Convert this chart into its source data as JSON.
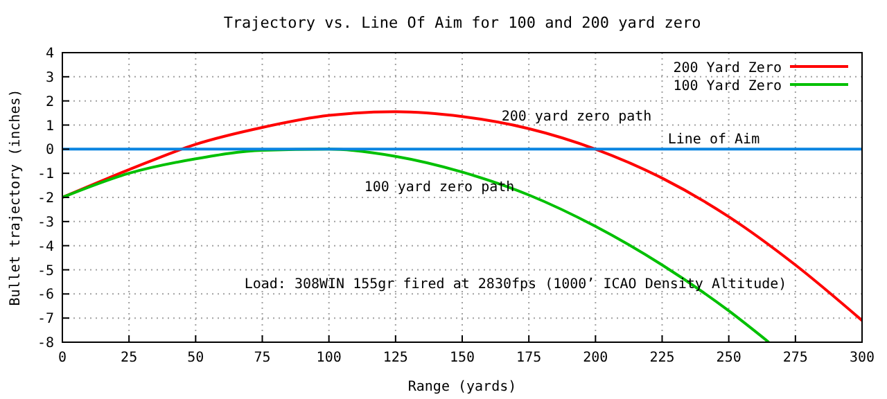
{
  "chart_data": {
    "type": "line",
    "title": "Trajectory vs. Line Of Aim for 100 and 200 yard zero",
    "xlabel": "Range (yards)",
    "ylabel": "Bullet trajectory (inches)",
    "x": [
      0,
      25,
      50,
      75,
      100,
      125,
      150,
      175,
      200,
      225,
      250,
      275,
      300
    ],
    "series": [
      {
        "name": "200 Yard Zero",
        "color": "#ff0000",
        "values": [
          -2,
          -0.85,
          0.2,
          0.9,
          1.4,
          1.55,
          1.35,
          0.85,
          0,
          -1.2,
          -2.8,
          -4.8,
          -7.1
        ]
      },
      {
        "name": "100 Yard Zero",
        "color": "#00c000",
        "x": [
          0,
          25,
          50,
          75,
          100,
          125,
          150,
          175,
          200,
          225,
          250,
          265
        ],
        "values": [
          -2,
          -1,
          -0.4,
          -0.05,
          0,
          -0.3,
          -0.95,
          -1.9,
          -3.2,
          -4.8,
          -6.7,
          -8
        ]
      }
    ],
    "ref_lines": [
      {
        "axis": "y",
        "value": 0,
        "label": "Line of Aim",
        "color": "#0a84e0"
      }
    ],
    "annotations": [
      "200 yard zero path",
      "100 yard zero path",
      "Load: 308WIN 155gr fired at 2830fps (1000’ ICAO Density Altitude)"
    ],
    "xlim": [
      0,
      300
    ],
    "xticks": [
      0,
      25,
      50,
      75,
      100,
      125,
      150,
      175,
      200,
      225,
      250,
      275,
      300
    ],
    "ylim": [
      -8,
      4
    ],
    "yticks": [
      -8,
      -7,
      -6,
      -5,
      -4,
      -3,
      -2,
      -1,
      0,
      1,
      2,
      3,
      4
    ],
    "grid": true,
    "legend": "top right",
    "marker": "none",
    "line_style": "solid"
  }
}
